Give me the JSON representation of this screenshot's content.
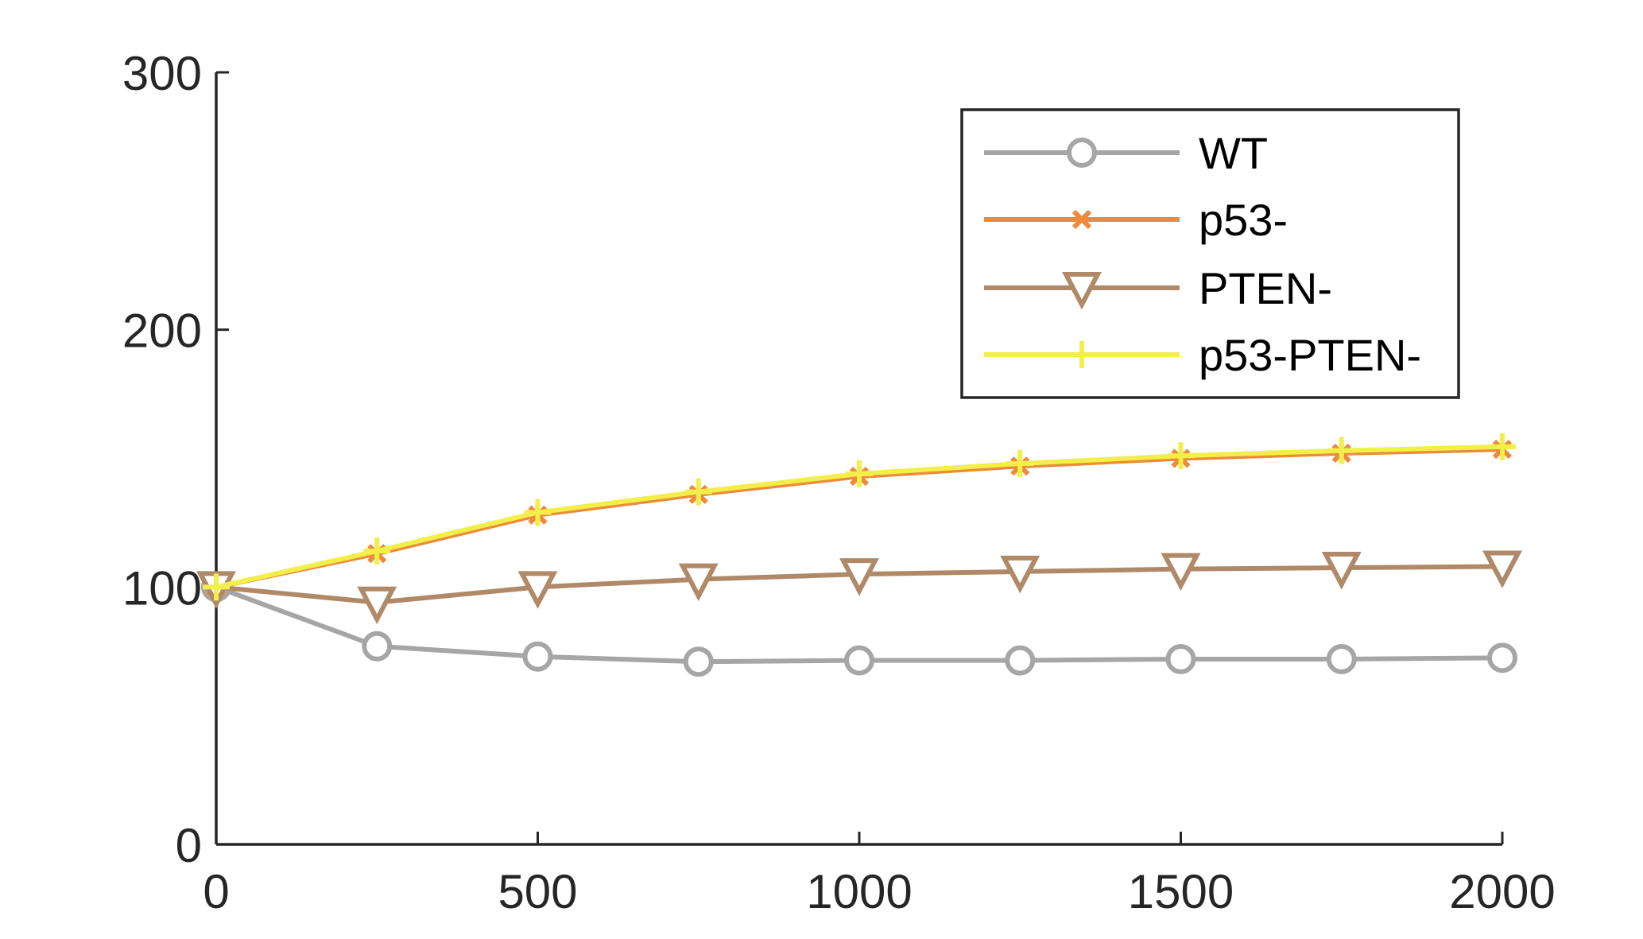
{
  "chart_data": {
    "type": "line",
    "title": "",
    "xlabel": "",
    "ylabel": "",
    "xlim": [
      0,
      2000
    ],
    "ylim": [
      0,
      300
    ],
    "xticks": [
      0,
      500,
      1000,
      1500,
      2000
    ],
    "yticks": [
      0,
      100,
      200,
      300
    ],
    "grid": false,
    "legend_position": "top-right",
    "x": [
      0,
      250,
      500,
      750,
      1000,
      1250,
      1500,
      1750,
      2000
    ],
    "series": [
      {
        "name": "WT",
        "color": "#a6a6a6",
        "marker": "circle",
        "values": [
          100,
          77,
          73,
          71,
          71.5,
          71.5,
          72,
          72,
          72.5
        ]
      },
      {
        "name": "p53-",
        "color": "#ed8a3b",
        "marker": "x",
        "values": [
          100,
          113,
          128,
          136,
          143,
          147,
          150,
          152,
          153.5
        ]
      },
      {
        "name": "PTEN-",
        "color": "#b08a68",
        "marker": "triangle-down",
        "values": [
          100,
          94,
          100,
          103,
          105,
          106,
          107,
          107.5,
          108
        ]
      },
      {
        "name": "p53-PTEN-",
        "color": "#f2ef4a",
        "marker": "plus",
        "values": [
          100,
          114,
          129,
          137,
          144,
          148,
          151,
          153,
          154.5
        ]
      }
    ]
  }
}
